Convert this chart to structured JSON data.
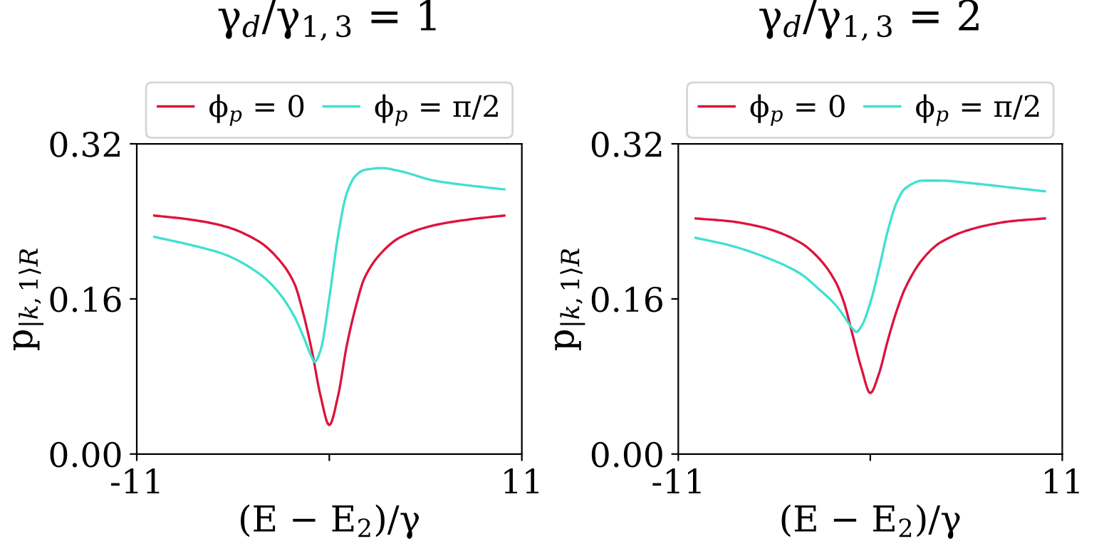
{
  "chart_data": [
    {
      "type": "line",
      "title": "γ$_{d}$/γ$_{1,3}$ = 1",
      "xlabel": "(E − E$_{2}$)/γ",
      "ylabel": "p$_{|k,1⟩R}$",
      "legend": "top",
      "grid": false,
      "xlim": [
        -11,
        11
      ],
      "xticks": [
        -11,
        {
          "value": 0,
          "label": null
        },
        11
      ],
      "ylim": [
        0,
        0.32
      ],
      "yticks": [
        {
          "value": 0,
          "label": "0.00"
        },
        {
          "value": 0.16,
          "label": "0.16"
        },
        {
          "value": 0.32,
          "label": "0.32"
        }
      ],
      "series": [
        {
          "name": "ϕ$_{p}$ = 0",
          "color": "#dc143c",
          "x": [
            -10,
            -8,
            -6,
            -4,
            -3,
            -2,
            -1.5,
            -1,
            -0.5,
            0,
            0.5,
            1,
            1.5,
            2,
            3,
            4,
            6,
            8,
            10
          ],
          "values": [
            0.246,
            0.242,
            0.235,
            0.219,
            0.203,
            0.176,
            0.146,
            0.107,
            0.06,
            0.03,
            0.06,
            0.112,
            0.151,
            0.181,
            0.208,
            0.223,
            0.236,
            0.242,
            0.246
          ]
        },
        {
          "name": "ϕ$_{p}$ = π/2",
          "color": "#40e0d0",
          "x": [
            -10,
            -8,
            -6,
            -4,
            -3,
            -2,
            -1.5,
            -1,
            -0.84,
            -0.5,
            0,
            0.5,
            1,
            1.5,
            2,
            3,
            4,
            6,
            8,
            10
          ],
          "values": [
            0.224,
            0.216,
            0.206,
            0.186,
            0.169,
            0.142,
            0.122,
            0.1,
            0.095,
            0.107,
            0.161,
            0.225,
            0.269,
            0.287,
            0.293,
            0.295,
            0.292,
            0.282,
            0.277,
            0.273
          ]
        }
      ]
    },
    {
      "type": "line",
      "title": "γ$_{d}$/γ$_{1,3}$ = 2",
      "xlabel": "(E − E$_{2}$)/γ",
      "ylabel": "p$_{|k,1⟩R}$",
      "legend": "top",
      "grid": false,
      "xlim": [
        -11,
        11
      ],
      "xticks": [
        -11,
        {
          "value": 0,
          "label": null
        },
        11
      ],
      "ylim": [
        0,
        0.32
      ],
      "yticks": [
        {
          "value": 0,
          "label": "0.00"
        },
        {
          "value": 0.16,
          "label": "0.16"
        },
        {
          "value": 0.32,
          "label": "0.32"
        }
      ],
      "series": [
        {
          "name": "ϕ$_{p}$ = 0",
          "color": "#dc143c",
          "x": [
            -10,
            -8,
            -6,
            -4,
            -3,
            -2,
            -1.5,
            -1,
            -0.5,
            0,
            0.5,
            1,
            1.5,
            2,
            3,
            4,
            6,
            8,
            10
          ],
          "values": [
            0.243,
            0.24,
            0.233,
            0.218,
            0.203,
            0.178,
            0.156,
            0.122,
            0.088,
            0.063,
            0.083,
            0.117,
            0.147,
            0.171,
            0.201,
            0.218,
            0.233,
            0.24,
            0.243
          ]
        },
        {
          "name": "ϕ$_{p}$ = π/2",
          "color": "#40e0d0",
          "x": [
            -10,
            -8,
            -6,
            -4,
            -3,
            -2,
            -1.5,
            -1,
            -0.8,
            -0.5,
            0,
            0.5,
            1,
            1.5,
            2,
            3,
            4,
            6,
            8,
            10
          ],
          "values": [
            0.223,
            0.215,
            0.203,
            0.186,
            0.171,
            0.154,
            0.142,
            0.129,
            0.126,
            0.132,
            0.156,
            0.191,
            0.23,
            0.259,
            0.274,
            0.282,
            0.282,
            0.279,
            0.275,
            0.271
          ]
        }
      ]
    }
  ]
}
